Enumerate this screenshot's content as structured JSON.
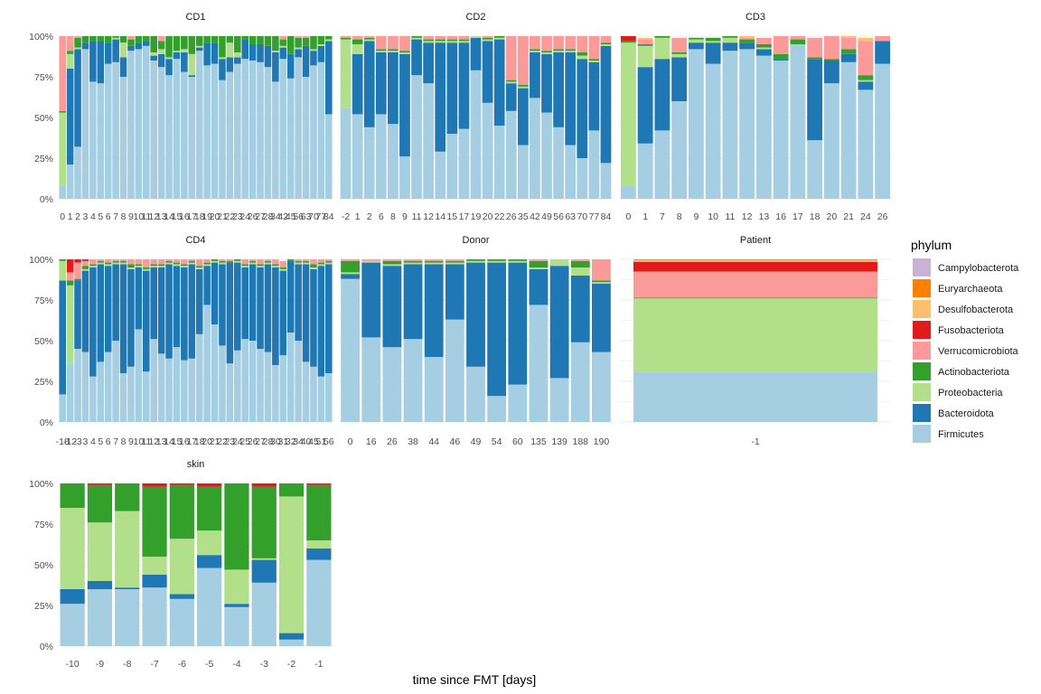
{
  "chart_data": {
    "type": "bar",
    "stacked": true,
    "xlabel": "time since FMT [days]",
    "ylim": [
      0,
      100
    ],
    "yticks": [
      "0%",
      "25%",
      "50%",
      "75%",
      "100%"
    ],
    "legend": {
      "title": "phylum",
      "position": "right",
      "entries": [
        {
          "name": "Campylobacterota",
          "color": "#cab2d6"
        },
        {
          "name": "Euryarchaeota",
          "color": "#ff7f00"
        },
        {
          "name": "Desulfobacterota",
          "color": "#fdbf6f"
        },
        {
          "name": "Fusobacteriota",
          "color": "#e31a1c"
        },
        {
          "name": "Verrucomicrobiota",
          "color": "#fb9a99"
        },
        {
          "name": "Actinobacteriota",
          "color": "#33a02c"
        },
        {
          "name": "Proteobacteria",
          "color": "#b2df8a"
        },
        {
          "name": "Bacteroidota",
          "color": "#1f78b4"
        },
        {
          "name": "Firmicutes",
          "color": "#a6cee3"
        }
      ]
    },
    "stack_order": [
      "Firmicutes",
      "Bacteroidota",
      "Proteobacteria",
      "Actinobacteriota",
      "Verrucomicrobiota",
      "Fusobacteriota",
      "Desulfobacterota",
      "Euryarchaeota",
      "Campylobacterota"
    ],
    "panels": [
      {
        "name": "CD1",
        "x": [
          "0",
          "1",
          "2",
          "3",
          "4",
          "5",
          "6",
          "7",
          "8",
          "9",
          "10",
          "11",
          "12",
          "13",
          "14",
          "15",
          "16",
          "17",
          "18",
          "19",
          "20",
          "21",
          "22",
          "23",
          "24",
          "26",
          "27",
          "28",
          "34",
          "42",
          "45",
          "56",
          "63",
          "70",
          "77",
          "84"
        ],
        "firmicutes": [
          8,
          21,
          32,
          92,
          72,
          71,
          83,
          84,
          75,
          91,
          92,
          94,
          85,
          81,
          76,
          86,
          78,
          75,
          91,
          82,
          83,
          73,
          78,
          83,
          86,
          85,
          84,
          81,
          72,
          86,
          74,
          87,
          75,
          82,
          84,
          52
        ],
        "bacteroidota": [
          0,
          59,
          60,
          4,
          25,
          26,
          13,
          14,
          12,
          3,
          4,
          3,
          3,
          8,
          10,
          4,
          12,
          1,
          2,
          14,
          13,
          13,
          9,
          4,
          12,
          10,
          11,
          13,
          18,
          7,
          15,
          5,
          19,
          9,
          10,
          45
        ],
        "proteobacteria": [
          45,
          9,
          1,
          0,
          0,
          0,
          0,
          1,
          9,
          0,
          0,
          0,
          2,
          3,
          1,
          1,
          2,
          13,
          1,
          0,
          0,
          1,
          9,
          3,
          0,
          0,
          0,
          0,
          1,
          1,
          0,
          1,
          0,
          1,
          1,
          1
        ],
        "actinobacteria": [
          1,
          2,
          6,
          4,
          3,
          3,
          4,
          1,
          4,
          4,
          4,
          3,
          10,
          5,
          13,
          9,
          8,
          11,
          6,
          4,
          4,
          13,
          4,
          10,
          2,
          5,
          5,
          6,
          9,
          4,
          11,
          6,
          5,
          8,
          5,
          2
        ],
        "verrucomicrobiota": [
          46,
          9,
          1,
          0,
          0,
          0,
          0,
          0,
          0,
          2,
          0,
          0,
          0,
          3,
          0,
          0,
          0,
          0,
          0,
          0,
          0,
          0,
          0,
          0,
          0,
          0,
          0,
          0,
          0,
          2,
          0,
          1,
          1,
          0,
          0,
          0
        ]
      },
      {
        "name": "CD2",
        "x": [
          "-2",
          "1",
          "2",
          "6",
          "8",
          "9",
          "11",
          "12",
          "14",
          "15",
          "17",
          "19",
          "20",
          "22",
          "26",
          "35",
          "42",
          "49",
          "56",
          "63",
          "70",
          "77",
          "84"
        ],
        "firmicutes": [
          56,
          52,
          44,
          52,
          46,
          26,
          76,
          71,
          29,
          40,
          43,
          79,
          59,
          45,
          54,
          33,
          62,
          53,
          44,
          33,
          25,
          42,
          22
        ],
        "bacteroidota": [
          0,
          37,
          53,
          38,
          44,
          63,
          22,
          25,
          67,
          56,
          53,
          20,
          38,
          53,
          17,
          35,
          28,
          36,
          46,
          57,
          61,
          42,
          72
        ],
        "proteobacteria": [
          42,
          6,
          1,
          1,
          1,
          1,
          1,
          1,
          1,
          1,
          1,
          1,
          1,
          1,
          1,
          1,
          1,
          1,
          1,
          1,
          2,
          1,
          1
        ],
        "actinobacteria": [
          1,
          3,
          1,
          1,
          1,
          1,
          1,
          1,
          1,
          1,
          1,
          0,
          1,
          1,
          1,
          1,
          1,
          1,
          1,
          1,
          2,
          1,
          1
        ],
        "verrucomicrobiota": [
          1,
          2,
          1,
          8,
          8,
          9,
          0,
          2,
          2,
          2,
          2,
          0,
          1,
          0,
          27,
          30,
          8,
          9,
          8,
          8,
          10,
          14,
          4
        ]
      },
      {
        "name": "CD3",
        "x": [
          "0",
          "1",
          "7",
          "8",
          "9",
          "10",
          "11",
          "12",
          "13",
          "16",
          "17",
          "18",
          "20",
          "21",
          "24",
          "26"
        ],
        "firmicutes": [
          8,
          34,
          42,
          60,
          92,
          83,
          91,
          92,
          88,
          85,
          95,
          36,
          71,
          84,
          67,
          83
        ],
        "bacteroidota": [
          0,
          47,
          44,
          27,
          4,
          13,
          5,
          4,
          4,
          1,
          0,
          50,
          14,
          5,
          5,
          14
        ],
        "proteobacteria": [
          88,
          13,
          13,
          2,
          2,
          1,
          3,
          0,
          1,
          0,
          0,
          0,
          0,
          0,
          1,
          0
        ],
        "actinobacteria": [
          1,
          1,
          1,
          1,
          1,
          2,
          1,
          2,
          2,
          3,
          3,
          1,
          1,
          3,
          3,
          0
        ],
        "verrucomicrobiota": [
          0,
          3,
          0,
          9,
          0,
          0,
          0,
          1,
          4,
          11,
          2,
          12,
          14,
          7,
          21,
          3
        ],
        "fusobacteriota": [
          3,
          0,
          0,
          0,
          0,
          0,
          0,
          0,
          0,
          0,
          0,
          0,
          0,
          0,
          0,
          0
        ],
        "desulfobacterota": [
          0,
          1,
          0,
          0,
          0,
          0,
          0,
          1,
          0,
          0,
          0,
          0,
          0,
          1,
          2,
          0
        ]
      },
      {
        "name": "CD4",
        "x": [
          "-18",
          "-12",
          "-3",
          "3",
          "4",
          "5",
          "6",
          "7",
          "8",
          "9",
          "10",
          "11",
          "12",
          "13",
          "14",
          "15",
          "16",
          "17",
          "18",
          "20",
          "21",
          "22",
          "23",
          "24",
          "25",
          "26",
          "27",
          "28",
          "30",
          "31",
          "32",
          "34",
          "40",
          "45",
          "51",
          "56"
        ],
        "firmicutes": [
          17,
          36,
          45,
          43,
          28,
          37,
          43,
          50,
          30,
          34,
          57,
          31,
          51,
          42,
          39,
          46,
          38,
          39,
          54,
          72,
          60,
          47,
          36,
          44,
          51,
          50,
          45,
          43,
          35,
          41,
          55,
          50,
          37,
          34,
          28,
          30
        ],
        "bacteroidota": [
          70,
          0,
          42,
          50,
          67,
          60,
          53,
          47,
          67,
          60,
          38,
          62,
          44,
          53,
          58,
          50,
          57,
          58,
          40,
          24,
          38,
          50,
          62,
          54,
          44,
          47,
          50,
          54,
          60,
          52,
          44,
          47,
          60,
          60,
          68,
          67
        ],
        "proteobacteria": [
          12,
          48,
          0,
          1,
          1,
          1,
          1,
          1,
          1,
          1,
          1,
          1,
          1,
          1,
          1,
          1,
          1,
          1,
          1,
          1,
          1,
          1,
          0,
          1,
          1,
          1,
          1,
          1,
          1,
          1,
          0,
          1,
          1,
          1,
          1,
          1
        ],
        "actinobacteria": [
          1,
          3,
          1,
          2,
          1,
          1,
          1,
          1,
          1,
          2,
          1,
          1,
          1,
          1,
          1,
          1,
          1,
          1,
          1,
          1,
          1,
          1,
          1,
          1,
          1,
          1,
          1,
          1,
          1,
          1,
          1,
          1,
          1,
          2,
          1,
          1
        ],
        "verrucomicrobiota": [
          0,
          5,
          10,
          3,
          3,
          1,
          2,
          1,
          1,
          3,
          3,
          5,
          3,
          3,
          1,
          2,
          3,
          1,
          4,
          2,
          0,
          1,
          1,
          0,
          3,
          1,
          3,
          1,
          3,
          4,
          0,
          1,
          1,
          3,
          2,
          1
        ],
        "fusobacteriota": [
          0,
          8,
          2,
          1,
          0,
          0,
          0,
          0,
          0,
          0,
          0,
          0,
          0,
          0,
          0,
          0,
          0,
          0,
          0,
          0,
          0,
          0,
          0,
          0,
          0,
          0,
          0,
          0,
          0,
          0,
          0,
          0,
          0,
          0,
          0,
          0
        ]
      },
      {
        "name": "Donor",
        "x": [
          "0",
          "16",
          "26",
          "38",
          "44",
          "46",
          "49",
          "54",
          "60",
          "135",
          "139",
          "188",
          "190"
        ],
        "firmicutes": [
          88,
          52,
          46,
          51,
          40,
          63,
          34,
          16,
          23,
          72,
          27,
          49,
          43
        ],
        "bacteroidota": [
          3,
          46,
          50,
          46,
          57,
          34,
          64,
          82,
          75,
          22,
          69,
          41,
          42
        ],
        "proteobacteria": [
          1,
          1,
          1,
          1,
          1,
          1,
          1,
          1,
          1,
          1,
          4,
          5,
          1
        ],
        "actinobacteria": [
          7,
          0,
          2,
          1,
          1,
          1,
          1,
          1,
          1,
          4,
          0,
          4,
          1
        ],
        "verrucomicrobiota": [
          1,
          1,
          1,
          1,
          1,
          1,
          0,
          0,
          0,
          1,
          0,
          1,
          13
        ]
      },
      {
        "name": "Patient",
        "x": [
          "-1"
        ],
        "firmicutes": [
          31
        ],
        "bacteroidota": [
          0
        ],
        "proteobacteria": [
          45
        ],
        "actinobacteria": [
          0.5
        ],
        "verrucomicrobiota": [
          16
        ],
        "fusobacteriota": [
          6
        ],
        "desulfobacterota": [
          1
        ],
        "euryarchaeota": [
          0.5
        ]
      },
      {
        "name": "skin",
        "x": [
          "-10",
          "-9",
          "-8",
          "-7",
          "-6",
          "-5",
          "-4",
          "-3",
          "-2",
          "-1"
        ],
        "firmicutes": [
          26,
          35,
          35,
          36,
          29,
          48,
          24,
          39,
          4,
          53
        ],
        "bacteroidota": [
          9,
          5,
          1,
          8,
          3,
          8,
          2,
          14,
          4,
          7
        ],
        "proteobacteria": [
          50,
          36,
          47,
          11,
          34,
          15,
          21,
          1,
          84,
          5
        ],
        "actinobacteria": [
          15,
          23,
          17,
          43,
          33,
          27,
          53,
          44,
          8,
          34
        ],
        "fusobacteriota": [
          0,
          1,
          0,
          2,
          1,
          2,
          0,
          2,
          0,
          1
        ]
      }
    ]
  }
}
